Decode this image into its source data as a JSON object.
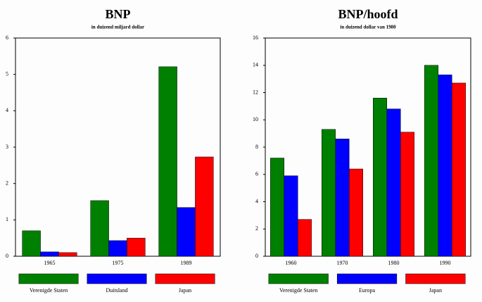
{
  "chart_data": [
    {
      "type": "bar",
      "title": "BNP",
      "subtitle": "in duizend miljard dollar",
      "categories": [
        "1965",
        "1975",
        "1989"
      ],
      "series": [
        {
          "name": "Verenigde Staten",
          "color": "#008000",
          "values": [
            0.7,
            1.53,
            5.21
          ]
        },
        {
          "name": "Duitsland",
          "color": "#0000ff",
          "values": [
            0.12,
            0.43,
            1.34
          ]
        },
        {
          "name": "Japan",
          "color": "#ff0000",
          "values": [
            0.1,
            0.5,
            2.73
          ]
        }
      ],
      "ylim": [
        0,
        6
      ],
      "yticks": [
        0,
        1,
        2,
        3,
        4,
        5,
        6
      ]
    },
    {
      "type": "bar",
      "title": "BNP/hoofd",
      "subtitle": "in duizend dollar van 1980",
      "categories": [
        "1960",
        "1970",
        "1980",
        "1990"
      ],
      "series": [
        {
          "name": "Verenigde Staten",
          "color": "#008000",
          "values": [
            7.2,
            9.3,
            11.6,
            14.0
          ]
        },
        {
          "name": "Europa",
          "color": "#0000ff",
          "values": [
            5.9,
            8.6,
            10.8,
            13.3
          ]
        },
        {
          "name": "Japan",
          "color": "#ff0000",
          "values": [
            2.7,
            6.4,
            9.1,
            12.7
          ]
        }
      ],
      "ylim": [
        0,
        16
      ],
      "yticks": [
        0,
        2,
        4,
        6,
        8,
        10,
        12,
        14,
        16
      ]
    }
  ]
}
